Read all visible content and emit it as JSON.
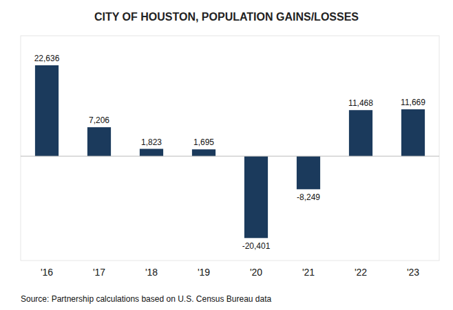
{
  "chart_data": {
    "type": "bar",
    "title": "CITY OF HOUSTON, POPULATION GAINS/LOSSES",
    "categories": [
      "'16",
      "'17",
      "'18",
      "'19",
      "'20",
      "'21",
      "'22",
      "'23"
    ],
    "values": [
      22636,
      7206,
      1823,
      1695,
      -20401,
      -8249,
      11468,
      11669
    ],
    "value_labels": [
      "22,636",
      "7,206",
      "1,823",
      "1,695",
      "-20,401",
      "-8,249",
      "11,468",
      "11,669"
    ],
    "color": "#1b3a5c",
    "ylim": [
      -26000,
      30000
    ],
    "data_labels": true,
    "tick_labels": "x",
    "grid": false,
    "annotations": [
      "Source: Partnership calculations based on U.S. Census Bureau data"
    ]
  }
}
